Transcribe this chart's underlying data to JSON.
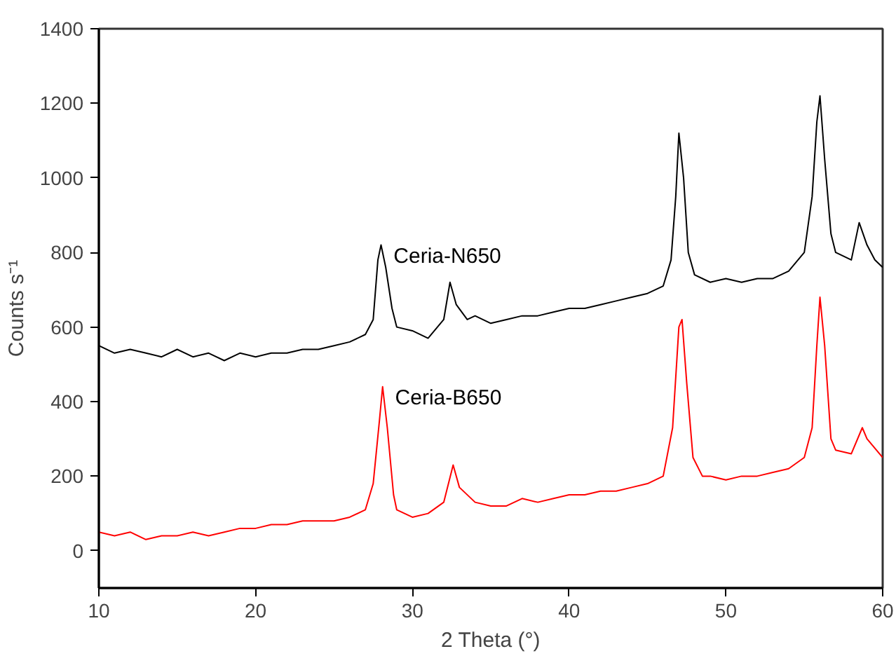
{
  "chart_data": {
    "type": "line",
    "xlabel": "2 Theta (°)",
    "ylabel": "Counts s⁻¹",
    "xlim": [
      10,
      60
    ],
    "xticks": [
      10,
      20,
      30,
      40,
      50,
      60
    ],
    "ylim": [
      -100,
      1400
    ],
    "yticks": [
      0,
      200,
      400,
      600,
      800,
      1000,
      1200,
      1400
    ],
    "series": [
      {
        "name": "Ceria-N650",
        "color": "#000000",
        "x": [
          10,
          11,
          12,
          13,
          14,
          15,
          16,
          17,
          18,
          19,
          20,
          21,
          22,
          23,
          24,
          25,
          26,
          27,
          27.5,
          27.8,
          28,
          28.3,
          28.7,
          29,
          30,
          31,
          32,
          32.4,
          32.8,
          33.5,
          34,
          35,
          36,
          37,
          38,
          39,
          40,
          41,
          42,
          43,
          44,
          45,
          46,
          46.5,
          46.8,
          47,
          47.3,
          47.6,
          48,
          49,
          50,
          51,
          52,
          53,
          54,
          55,
          55.5,
          55.8,
          56,
          56.3,
          56.7,
          57,
          58,
          58.5,
          59,
          59.5,
          60
        ],
        "values": [
          550,
          530,
          540,
          530,
          520,
          540,
          520,
          530,
          510,
          530,
          520,
          530,
          530,
          540,
          540,
          550,
          560,
          580,
          620,
          780,
          820,
          760,
          650,
          600,
          590,
          570,
          620,
          720,
          660,
          620,
          630,
          610,
          620,
          630,
          630,
          640,
          650,
          650,
          660,
          670,
          680,
          690,
          710,
          780,
          950,
          1120,
          1000,
          800,
          740,
          720,
          730,
          720,
          730,
          730,
          750,
          800,
          950,
          1150,
          1220,
          1050,
          850,
          800,
          780,
          880,
          820,
          780,
          760
        ]
      },
      {
        "name": "Ceria-B650",
        "color": "#ff0000",
        "x": [
          10,
          11,
          12,
          13,
          14,
          15,
          16,
          17,
          18,
          19,
          20,
          21,
          22,
          23,
          24,
          25,
          26,
          27,
          27.5,
          27.9,
          28.1,
          28.4,
          28.8,
          29,
          30,
          31,
          32,
          32.6,
          33,
          34,
          35,
          36,
          37,
          38,
          39,
          40,
          41,
          42,
          43,
          44,
          45,
          46,
          46.6,
          47,
          47.2,
          47.5,
          47.9,
          48.5,
          49,
          50,
          51,
          52,
          53,
          54,
          55,
          55.5,
          55.8,
          56,
          56.3,
          56.7,
          57,
          58,
          58.7,
          59,
          60
        ],
        "values": [
          50,
          40,
          50,
          30,
          40,
          40,
          50,
          40,
          50,
          60,
          60,
          70,
          70,
          80,
          80,
          80,
          90,
          110,
          180,
          350,
          440,
          330,
          150,
          110,
          90,
          100,
          130,
          230,
          170,
          130,
          120,
          120,
          140,
          130,
          140,
          150,
          150,
          160,
          160,
          170,
          180,
          200,
          330,
          600,
          620,
          450,
          250,
          200,
          200,
          190,
          200,
          200,
          210,
          220,
          250,
          330,
          550,
          680,
          550,
          300,
          270,
          260,
          330,
          300,
          250
        ]
      }
    ]
  }
}
